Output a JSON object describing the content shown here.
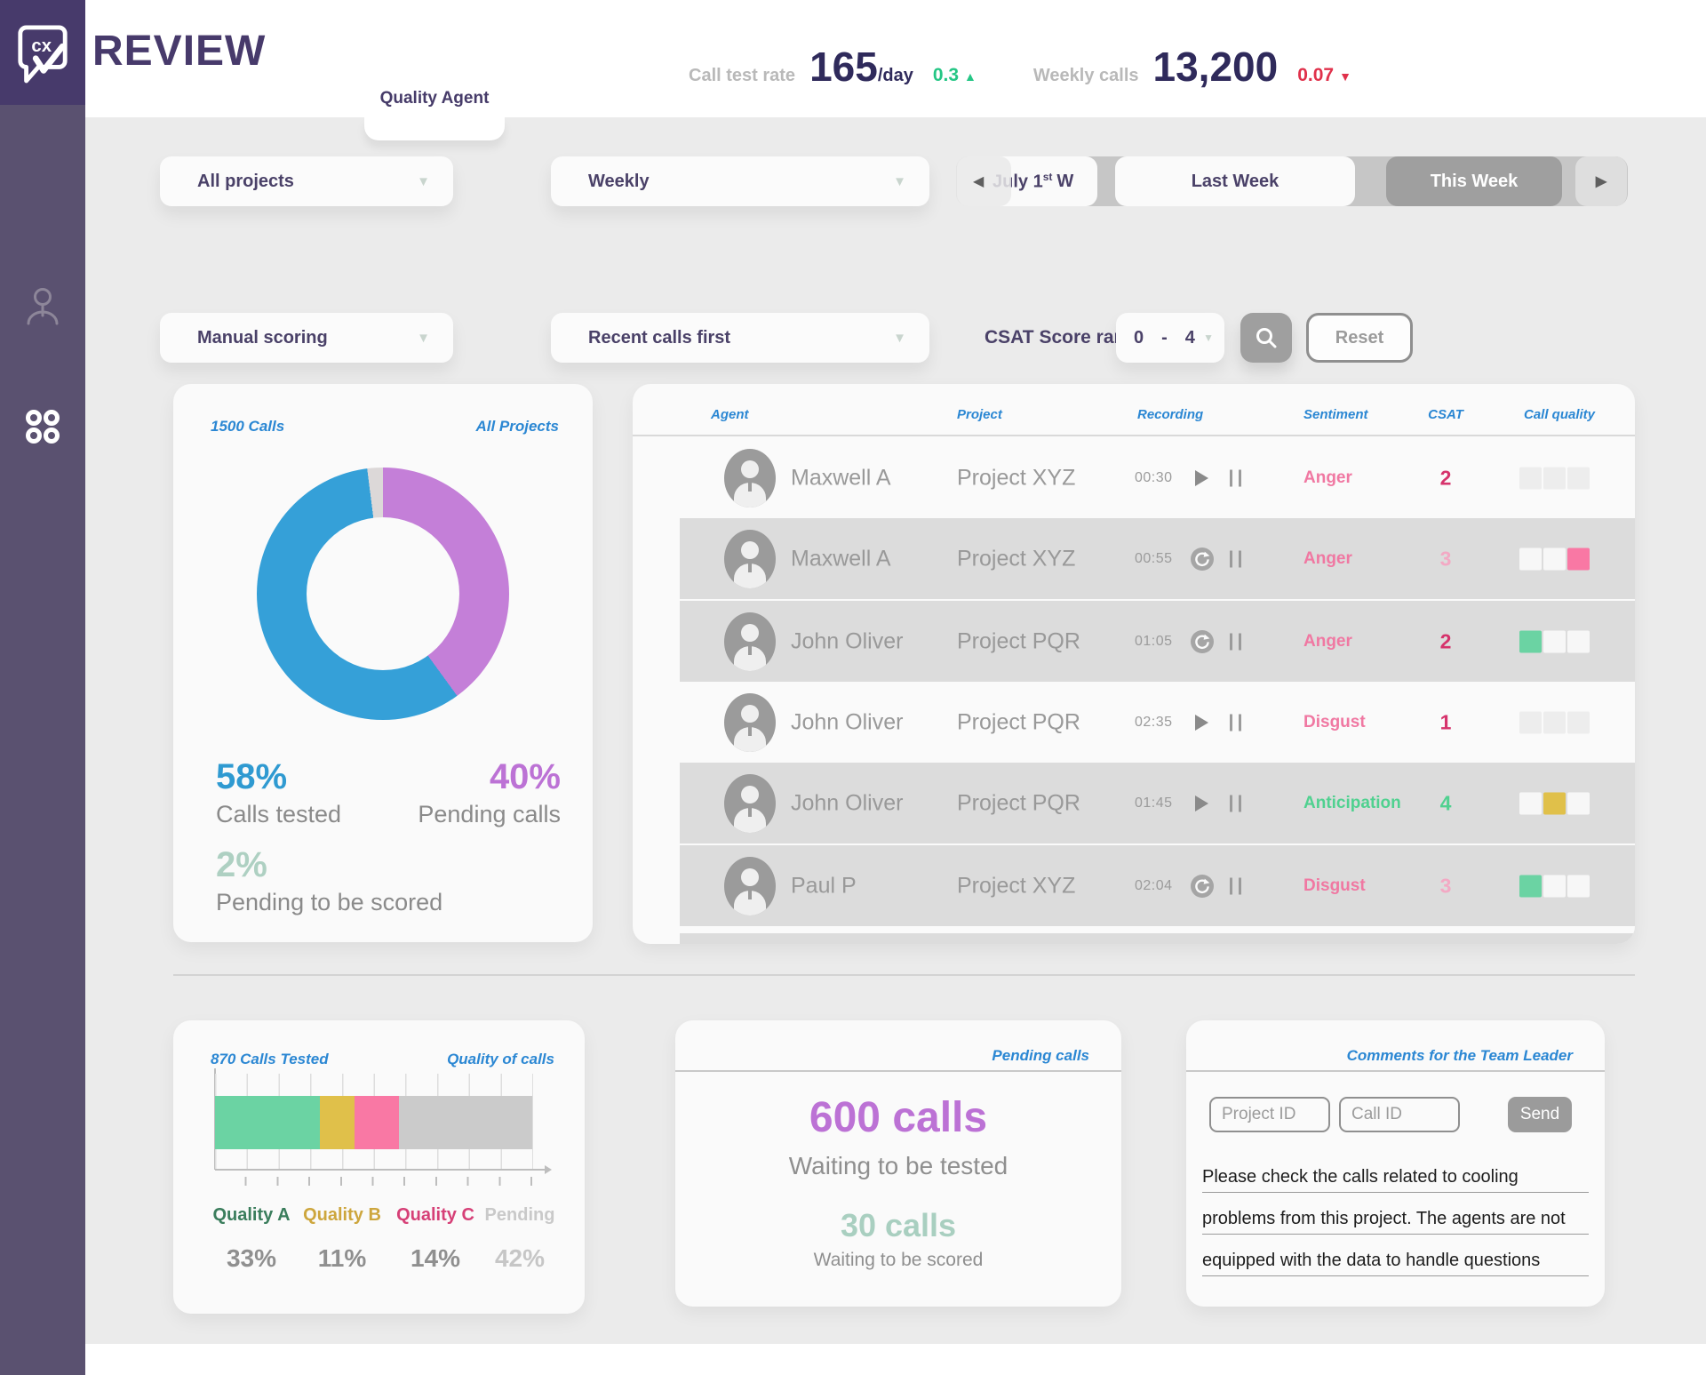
{
  "icons": {
    "caret_down": "▼",
    "up_arrow": "▲",
    "down_arrow": "▼",
    "prev": "◀",
    "next": "▶"
  },
  "brand": {
    "logo_short": "cx",
    "name": "REVIEW"
  },
  "header": {
    "tab": "Quality Agent",
    "stats": [
      {
        "label": "Call test rate",
        "value": "165",
        "unit": "/day",
        "delta": "0.3",
        "direction": "up"
      },
      {
        "label": "Weekly calls",
        "value": "13,200",
        "delta": "0.07",
        "direction": "down"
      }
    ]
  },
  "filters": {
    "project": "All projects",
    "period": "Weekly",
    "nav": {
      "date_prefix": "July 1",
      "date_sup": "st",
      "date_suffix": "W",
      "last_week": "Last Week",
      "this_week": "This Week"
    },
    "scoring": "Manual scoring",
    "sort": "Recent calls first",
    "csat_label": "CSAT Score range",
    "csat_min": "0",
    "csat_sep": "-",
    "csat_max": "4",
    "reset": "Reset"
  },
  "donut_card": {
    "title_left": "1500 Calls",
    "title_right": "All Projects",
    "chart_data": {
      "type": "pie",
      "title": "1500 Calls - All Projects",
      "segments": [
        {
          "label": "Pending calls",
          "value": 40,
          "color": "#c47fd8"
        },
        {
          "label": "Calls tested",
          "value": 58,
          "color": "#35a0d8"
        },
        {
          "label": "Pending to be scored",
          "value": 2,
          "color": "#dcd8d8"
        }
      ]
    },
    "stats": [
      {
        "value": "58%",
        "label": "Calls tested",
        "color": "#2f9ad1"
      },
      {
        "value": "40%",
        "label": "Pending calls",
        "color": "#bc72d5"
      },
      {
        "value": "2%",
        "label": "Pending to be scored",
        "color": "#aed0c2"
      }
    ]
  },
  "table": {
    "columns": [
      "Agent",
      "Project",
      "Recording",
      "Sentiment",
      "CSAT",
      "Call quality"
    ],
    "rows": [
      {
        "agent": "Maxwell A",
        "project": "Project XYZ",
        "time": "00:30",
        "control": "play",
        "sentiment": "Anger",
        "sentiment_color": "#f078a2",
        "csat": "2",
        "csat_color": "#d6336c",
        "quality": [
          "#ededed",
          "#ededed",
          "#ededed"
        ],
        "shaded": false
      },
      {
        "agent": "Maxwell A",
        "project": "Project XYZ",
        "time": "00:55",
        "control": "replay",
        "sentiment": "Anger",
        "sentiment_color": "#f078a2",
        "csat": "3",
        "csat_color": "#f3a9c4",
        "quality": [
          "#f7f7f7",
          "#f7f7f7",
          "#f978a4"
        ],
        "shaded": true
      },
      {
        "agent": "John Oliver",
        "project": "Project PQR",
        "time": "01:05",
        "control": "replay",
        "sentiment": "Anger",
        "sentiment_color": "#f078a2",
        "csat": "2",
        "csat_color": "#d6336c",
        "quality": [
          "#6bd3a3",
          "#f7f7f7",
          "#f7f7f7"
        ],
        "shaded": true
      },
      {
        "agent": "John Oliver",
        "project": "Project PQR",
        "time": "02:35",
        "control": "play",
        "sentiment": "Disgust",
        "sentiment_color": "#f078a2",
        "csat": "1",
        "csat_color": "#d6336c",
        "quality": [
          "#ededed",
          "#ededed",
          "#ededed"
        ],
        "shaded": false
      },
      {
        "agent": "John Oliver",
        "project": "Project PQR",
        "time": "01:45",
        "control": "play",
        "sentiment": "Anticipation",
        "sentiment_color": "#50d190",
        "csat": "4",
        "csat_color": "#50d190",
        "quality": [
          "#f7f7f7",
          "#e0c04a",
          "#f7f7f7"
        ],
        "shaded": true
      },
      {
        "agent": "Paul P",
        "project": "Project XYZ",
        "time": "02:04",
        "control": "replay",
        "sentiment": "Disgust",
        "sentiment_color": "#f078a2",
        "csat": "3",
        "csat_color": "#f3a9c4",
        "quality": [
          "#6bd3a3",
          "#f7f7f7",
          "#f7f7f7"
        ],
        "shaded": true
      }
    ]
  },
  "quality_card": {
    "title_left": "870 Calls Tested",
    "title_right": "Quality of calls",
    "chart_data": {
      "type": "bar",
      "stacked": true,
      "categories": [
        "Quality A",
        "Quality B",
        "Quality C",
        "Pending"
      ],
      "values": [
        33,
        11,
        14,
        42
      ],
      "colors": [
        "#6bd3a3",
        "#e0c04a",
        "#f978a4",
        "#cbcbcb"
      ],
      "xlim": [
        0,
        100
      ],
      "grid": true
    },
    "legend": [
      {
        "label": "Quality A",
        "pct": "33%",
        "label_color": "#3a7d5c",
        "pct_color": "#8f8f8f"
      },
      {
        "label": "Quality B",
        "pct": "11%",
        "label_color": "#cda63d",
        "pct_color": "#8f8f8f"
      },
      {
        "label": "Quality C",
        "pct": "14%",
        "label_color": "#d64077",
        "pct_color": "#8f8f8f"
      },
      {
        "label": "Pending",
        "pct": "42%",
        "label_color": "#c9c9c9",
        "pct_color": "#c6c6c6"
      }
    ]
  },
  "pending_card": {
    "title": "Pending calls",
    "primary_value": "600 calls",
    "primary_color": "#bc72d5",
    "primary_label": "Waiting to be tested",
    "secondary_value": "30 calls",
    "secondary_color": "#a9cfc0",
    "secondary_label": "Waiting to be scored"
  },
  "comments_card": {
    "title": "Comments for the Team Leader",
    "project_id_placeholder": "Project ID",
    "call_id_placeholder": "Call ID",
    "send": "Send",
    "lines": [
      "Please check the calls related to cooling",
      "problems from this project. The agents are not",
      "equipped with the data to handle questions"
    ]
  }
}
